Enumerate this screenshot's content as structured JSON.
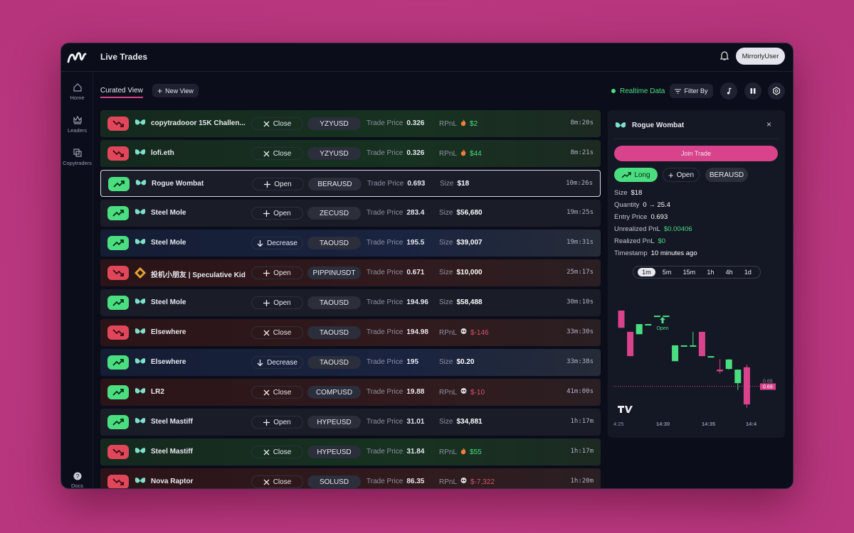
{
  "header": {
    "title": "Live Trades",
    "user": "MirrorlyUser"
  },
  "sidebar": {
    "items": [
      "Home",
      "Leaders",
      "Copytraders"
    ],
    "footer": "Docs"
  },
  "toolbar": {
    "tabs": [
      "Curated View",
      "New View"
    ],
    "status": "Realtime Data",
    "filter": "Filter By"
  },
  "trades": {
    "price_label": "Trade Price",
    "rows": [
      {
        "trader": "copytradooor 15K Challen...",
        "action": "Close",
        "symbol": "YZYUSD",
        "price": 0.326,
        "metric_label": "RPnL",
        "metric": "$2",
        "time": "8m:20s"
      },
      {
        "trader": "lofi.eth",
        "action": "Close",
        "symbol": "YZYUSD",
        "price": 0.326,
        "metric_label": "RPnL",
        "metric": "$44",
        "time": "8m:21s"
      },
      {
        "trader": "Rogue Wombat",
        "action": "Open",
        "symbol": "BERAUSD",
        "price": 0.693,
        "metric_label": "Size",
        "metric": "$18",
        "time": "10m:26s"
      },
      {
        "trader": "Steel Mole",
        "action": "Open",
        "symbol": "ZECUSD",
        "price": 283.4,
        "metric_label": "Size",
        "metric": "$56,680",
        "time": "19m:25s"
      },
      {
        "trader": "Steel Mole",
        "action": "Decrease",
        "symbol": "TAOUSD",
        "price": 195.5,
        "metric_label": "Size",
        "metric": "$39,007",
        "time": "19m:31s"
      },
      {
        "trader": "投机小朋友 | Speculative Kid",
        "action": "Open",
        "symbol": "PIPPINUSDT",
        "price": 0.671,
        "metric_label": "Size",
        "metric": "$10,000",
        "time": "25m:17s"
      },
      {
        "trader": "Steel Mole",
        "action": "Open",
        "symbol": "TAOUSD",
        "price": 194.96,
        "metric_label": "Size",
        "metric": "$58,488",
        "time": "30m:10s"
      },
      {
        "trader": "Elsewhere",
        "action": "Close",
        "symbol": "TAOUSD",
        "price": 194.98,
        "metric_label": "RPnL",
        "metric": "$-146",
        "time": "33m:30s"
      },
      {
        "trader": "Elsewhere",
        "action": "Decrease",
        "symbol": "TAOUSD",
        "price": 195,
        "metric_label": "Size",
        "metric": "$0.20",
        "time": "33m:38s"
      },
      {
        "trader": "LR2",
        "action": "Close",
        "symbol": "COMPUSD",
        "price": 19.88,
        "metric_label": "RPnL",
        "metric": "$-10",
        "time": "41m:00s"
      },
      {
        "trader": "Steel Mastiff",
        "action": "Open",
        "symbol": "HYPEUSD",
        "price": 31.01,
        "metric_label": "Size",
        "metric": "$34,881",
        "time": "1h:17m"
      },
      {
        "trader": "Steel Mastiff",
        "action": "Close",
        "symbol": "HYPEUSD",
        "price": 31.84,
        "metric_label": "RPnL",
        "metric": "$55",
        "time": "1h:17m"
      },
      {
        "trader": "Nova Raptor",
        "action": "Close",
        "symbol": "SOLUSD",
        "price": 86.35,
        "metric_label": "RPnL",
        "metric": "$-7,322",
        "time": "1h:20m"
      }
    ]
  },
  "detail": {
    "trader": "Rogue Wombat",
    "button": "Join Trade",
    "tags": [
      "Long",
      "Open",
      "BERAUSD"
    ],
    "fields": [
      {
        "label": "Size",
        "value": "$18"
      },
      {
        "label": "Quantity",
        "value": "0 → 25.4"
      },
      {
        "label": "Entry Price",
        "value": "0.693"
      },
      {
        "label": "Unrealized PnL",
        "value": "$0.00406"
      },
      {
        "label": "Realized PnL",
        "value": "$0"
      },
      {
        "label": "Timestamp",
        "value": "10 minutes ago"
      }
    ],
    "timeframes": [
      "1m",
      "5m",
      "15m",
      "1h",
      "4h",
      "1d"
    ],
    "chart": {
      "ylim": [
        0.68,
        0.72
      ],
      "last_price": 0.69,
      "marker": "Open",
      "xticks": [
        "4:25",
        "14:30",
        "14:35",
        "14:4"
      ],
      "candles": [
        {
          "o": 0.712,
          "h": 0.712,
          "l": 0.7069,
          "c": 0.7069
        },
        {
          "o": 0.7057,
          "h": 0.7057,
          "l": 0.6985,
          "c": 0.6985
        },
        {
          "o": 0.705,
          "h": 0.708,
          "l": 0.705,
          "c": 0.708
        },
        {
          "o": 0.708,
          "h": 0.708,
          "l": 0.708,
          "c": 0.708
        },
        {
          "o": 0.7105,
          "h": 0.7105,
          "l": 0.7105,
          "c": 0.7105
        },
        {
          "o": 0.7105,
          "h": 0.7105,
          "l": 0.7105,
          "c": 0.7105
        },
        {
          "o": 0.697,
          "h": 0.7017,
          "l": 0.697,
          "c": 0.7017
        },
        {
          "o": 0.7017,
          "h": 0.7017,
          "l": 0.7017,
          "c": 0.7017
        },
        {
          "o": 0.7017,
          "h": 0.7057,
          "l": 0.7017,
          "c": 0.7017
        },
        {
          "o": 0.7057,
          "h": 0.7057,
          "l": 0.6985,
          "c": 0.6985
        },
        {
          "o": 0.6985,
          "h": 0.6985,
          "l": 0.6985,
          "c": 0.6985
        },
        {
          "o": 0.6945,
          "h": 0.6976,
          "l": 0.6934,
          "c": 0.694
        },
        {
          "o": 0.6947,
          "h": 0.6976,
          "l": 0.6945,
          "c": 0.6975
        },
        {
          "o": 0.6905,
          "h": 0.6945,
          "l": 0.6885,
          "c": 0.6945
        },
        {
          "o": 0.6952,
          "h": 0.696,
          "l": 0.6832,
          "c": 0.6842
        }
      ]
    }
  }
}
